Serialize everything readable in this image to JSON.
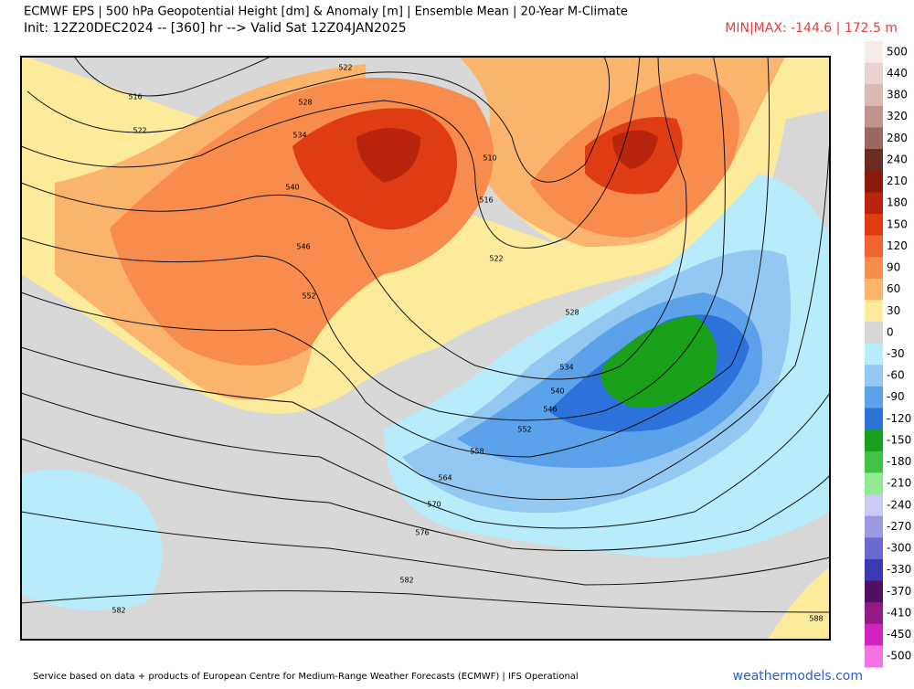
{
  "header": {
    "title": "ECMWF EPS | 500 hPa Geopotential Height [dm] & Anomaly [m] | Ensemble Mean | 20-Year M-Climate",
    "subtitle": "Init: 12Z20DEC2024 -- [360] hr --> Valid Sat 12Z04JAN2025",
    "minmax": "MIN|MAX: -144.6 | 172.5 m"
  },
  "colorbar": {
    "levels": [
      500,
      440,
      380,
      320,
      280,
      240,
      210,
      180,
      150,
      120,
      90,
      60,
      30,
      0,
      -30,
      -60,
      -90,
      -120,
      -150,
      -180,
      -210,
      -240,
      -270,
      -300,
      -330,
      -370,
      -410,
      -450,
      -500
    ],
    "colors": [
      "#f6ebe8",
      "#ead4d0",
      "#dbb8b2",
      "#c0948c",
      "#9a6860",
      "#6c2c22",
      "#8c1a0c",
      "#b8240c",
      "#e03c14",
      "#f06432",
      "#f78c4c",
      "#fbb46c",
      "#fdeb9c",
      "#d8d8d8",
      "#b8ecfa",
      "#92c8f2",
      "#5ca2ea",
      "#2c72da",
      "#18a018",
      "#42c242",
      "#94ea94",
      "#cacaf2",
      "#9a9ae2",
      "#6a6ad2",
      "#3a3ab2",
      "#521062",
      "#921a82",
      "#d222c2",
      "#f272e2"
    ]
  },
  "contour_labels": [
    516,
    522,
    522,
    528,
    534,
    540,
    546,
    552,
    510,
    516,
    522,
    528,
    534,
    540,
    546,
    552,
    558,
    564,
    570,
    576,
    582,
    582,
    588
  ],
  "footer": {
    "credit": "Service based on data + products of European Centre for Medium-Range Weather Forecasts (ECMWF) | IFS Operational",
    "site": "weathermodels.com"
  }
}
